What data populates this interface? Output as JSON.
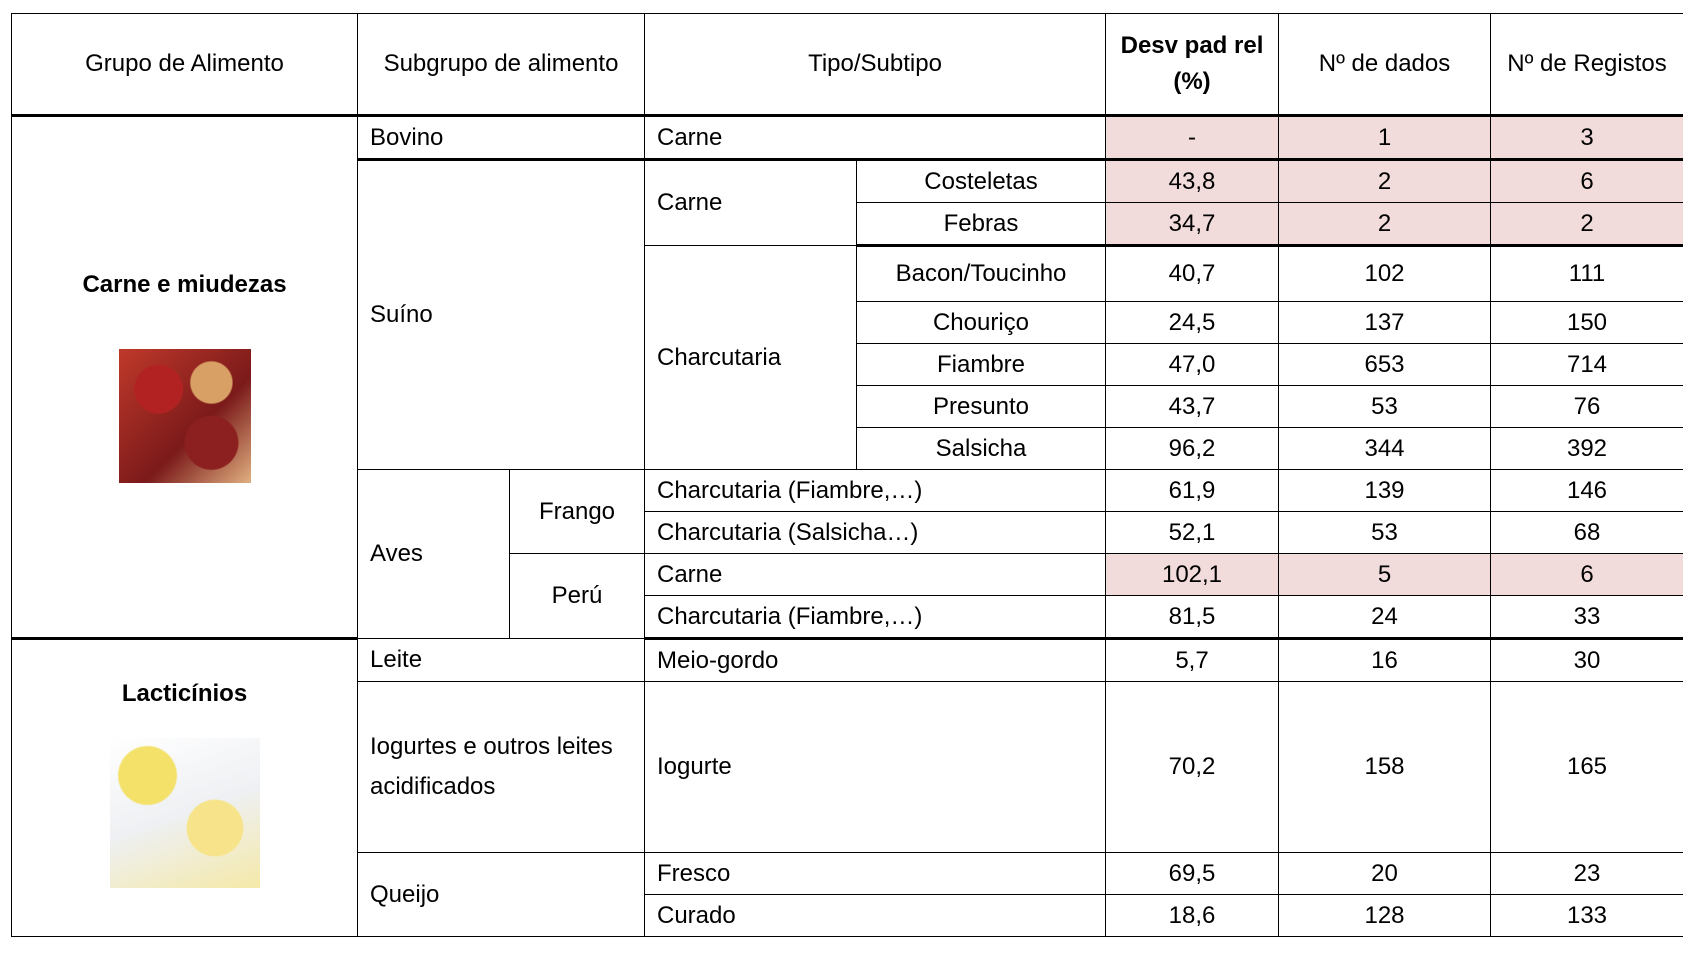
{
  "table": {
    "header": [
      "Grupo de Alimento",
      "Subgrupo de alimento",
      "Tipo/Subtipo",
      "Desv pad rel (%)",
      "Nº de dados",
      "Nº de Registos"
    ],
    "highlight_color": "#f2dcdb",
    "groups": [
      {
        "name": "Carne e miudezas"
      },
      {
        "name": "Lacticínios"
      }
    ],
    "rows": [
      {
        "subgroup": "Bovino",
        "tipo": "Carne",
        "desv": "-",
        "dados": "1",
        "registos": "3",
        "highlighted": true
      },
      {
        "subgroup": "Suíno",
        "tipo": "Carne",
        "subtipo": "Costeletas",
        "desv": "43,8",
        "dados": "2",
        "registos": "6",
        "highlighted": true
      },
      {
        "subtipo": "Febras",
        "desv": "34,7",
        "dados": "2",
        "registos": "2",
        "highlighted": true
      },
      {
        "tipo": "Charcutaria",
        "subtipo": "Bacon/Toucinho",
        "desv": "40,7",
        "dados": "102",
        "registos": "111"
      },
      {
        "subtipo": "Chouriço",
        "desv": "24,5",
        "dados": "137",
        "registos": "150"
      },
      {
        "subtipo": "Fiambre",
        "desv": "47,0",
        "dados": "653",
        "registos": "714"
      },
      {
        "subtipo": "Presunto",
        "desv": "43,7",
        "dados": "53",
        "registos": "76"
      },
      {
        "subtipo": "Salsicha",
        "desv": "96,2",
        "dados": "344",
        "registos": "392"
      },
      {
        "subgroup": "Aves",
        "species": "Frango",
        "tipo": "Charcutaria (Fiambre,…)",
        "desv": "61,9",
        "dados": "139",
        "registos": "146"
      },
      {
        "tipo": "Charcutaria (Salsicha…)",
        "desv": "52,1",
        "dados": "53",
        "registos": "68"
      },
      {
        "species": "Perú",
        "tipo": "Carne",
        "desv": "102,1",
        "dados": "5",
        "registos": "6",
        "highlighted": true
      },
      {
        "tipo": "Charcutaria (Fiambre,…)",
        "desv": "81,5",
        "dados": "24",
        "registos": "33"
      },
      {
        "subgroup": "Leite",
        "tipo": "Meio-gordo",
        "desv": "5,7",
        "dados": "16",
        "registos": "30"
      },
      {
        "subgroup": "Iogurtes e outros leites acidificados",
        "tipo": "Iogurte",
        "desv": "70,2",
        "dados": "158",
        "registos": "165"
      },
      {
        "subgroup": "Queijo",
        "tipo": "Fresco",
        "desv": "69,5",
        "dados": "20",
        "registos": "23"
      },
      {
        "tipo": "Curado",
        "desv": "18,6",
        "dados": "128",
        "registos": "133"
      }
    ]
  }
}
